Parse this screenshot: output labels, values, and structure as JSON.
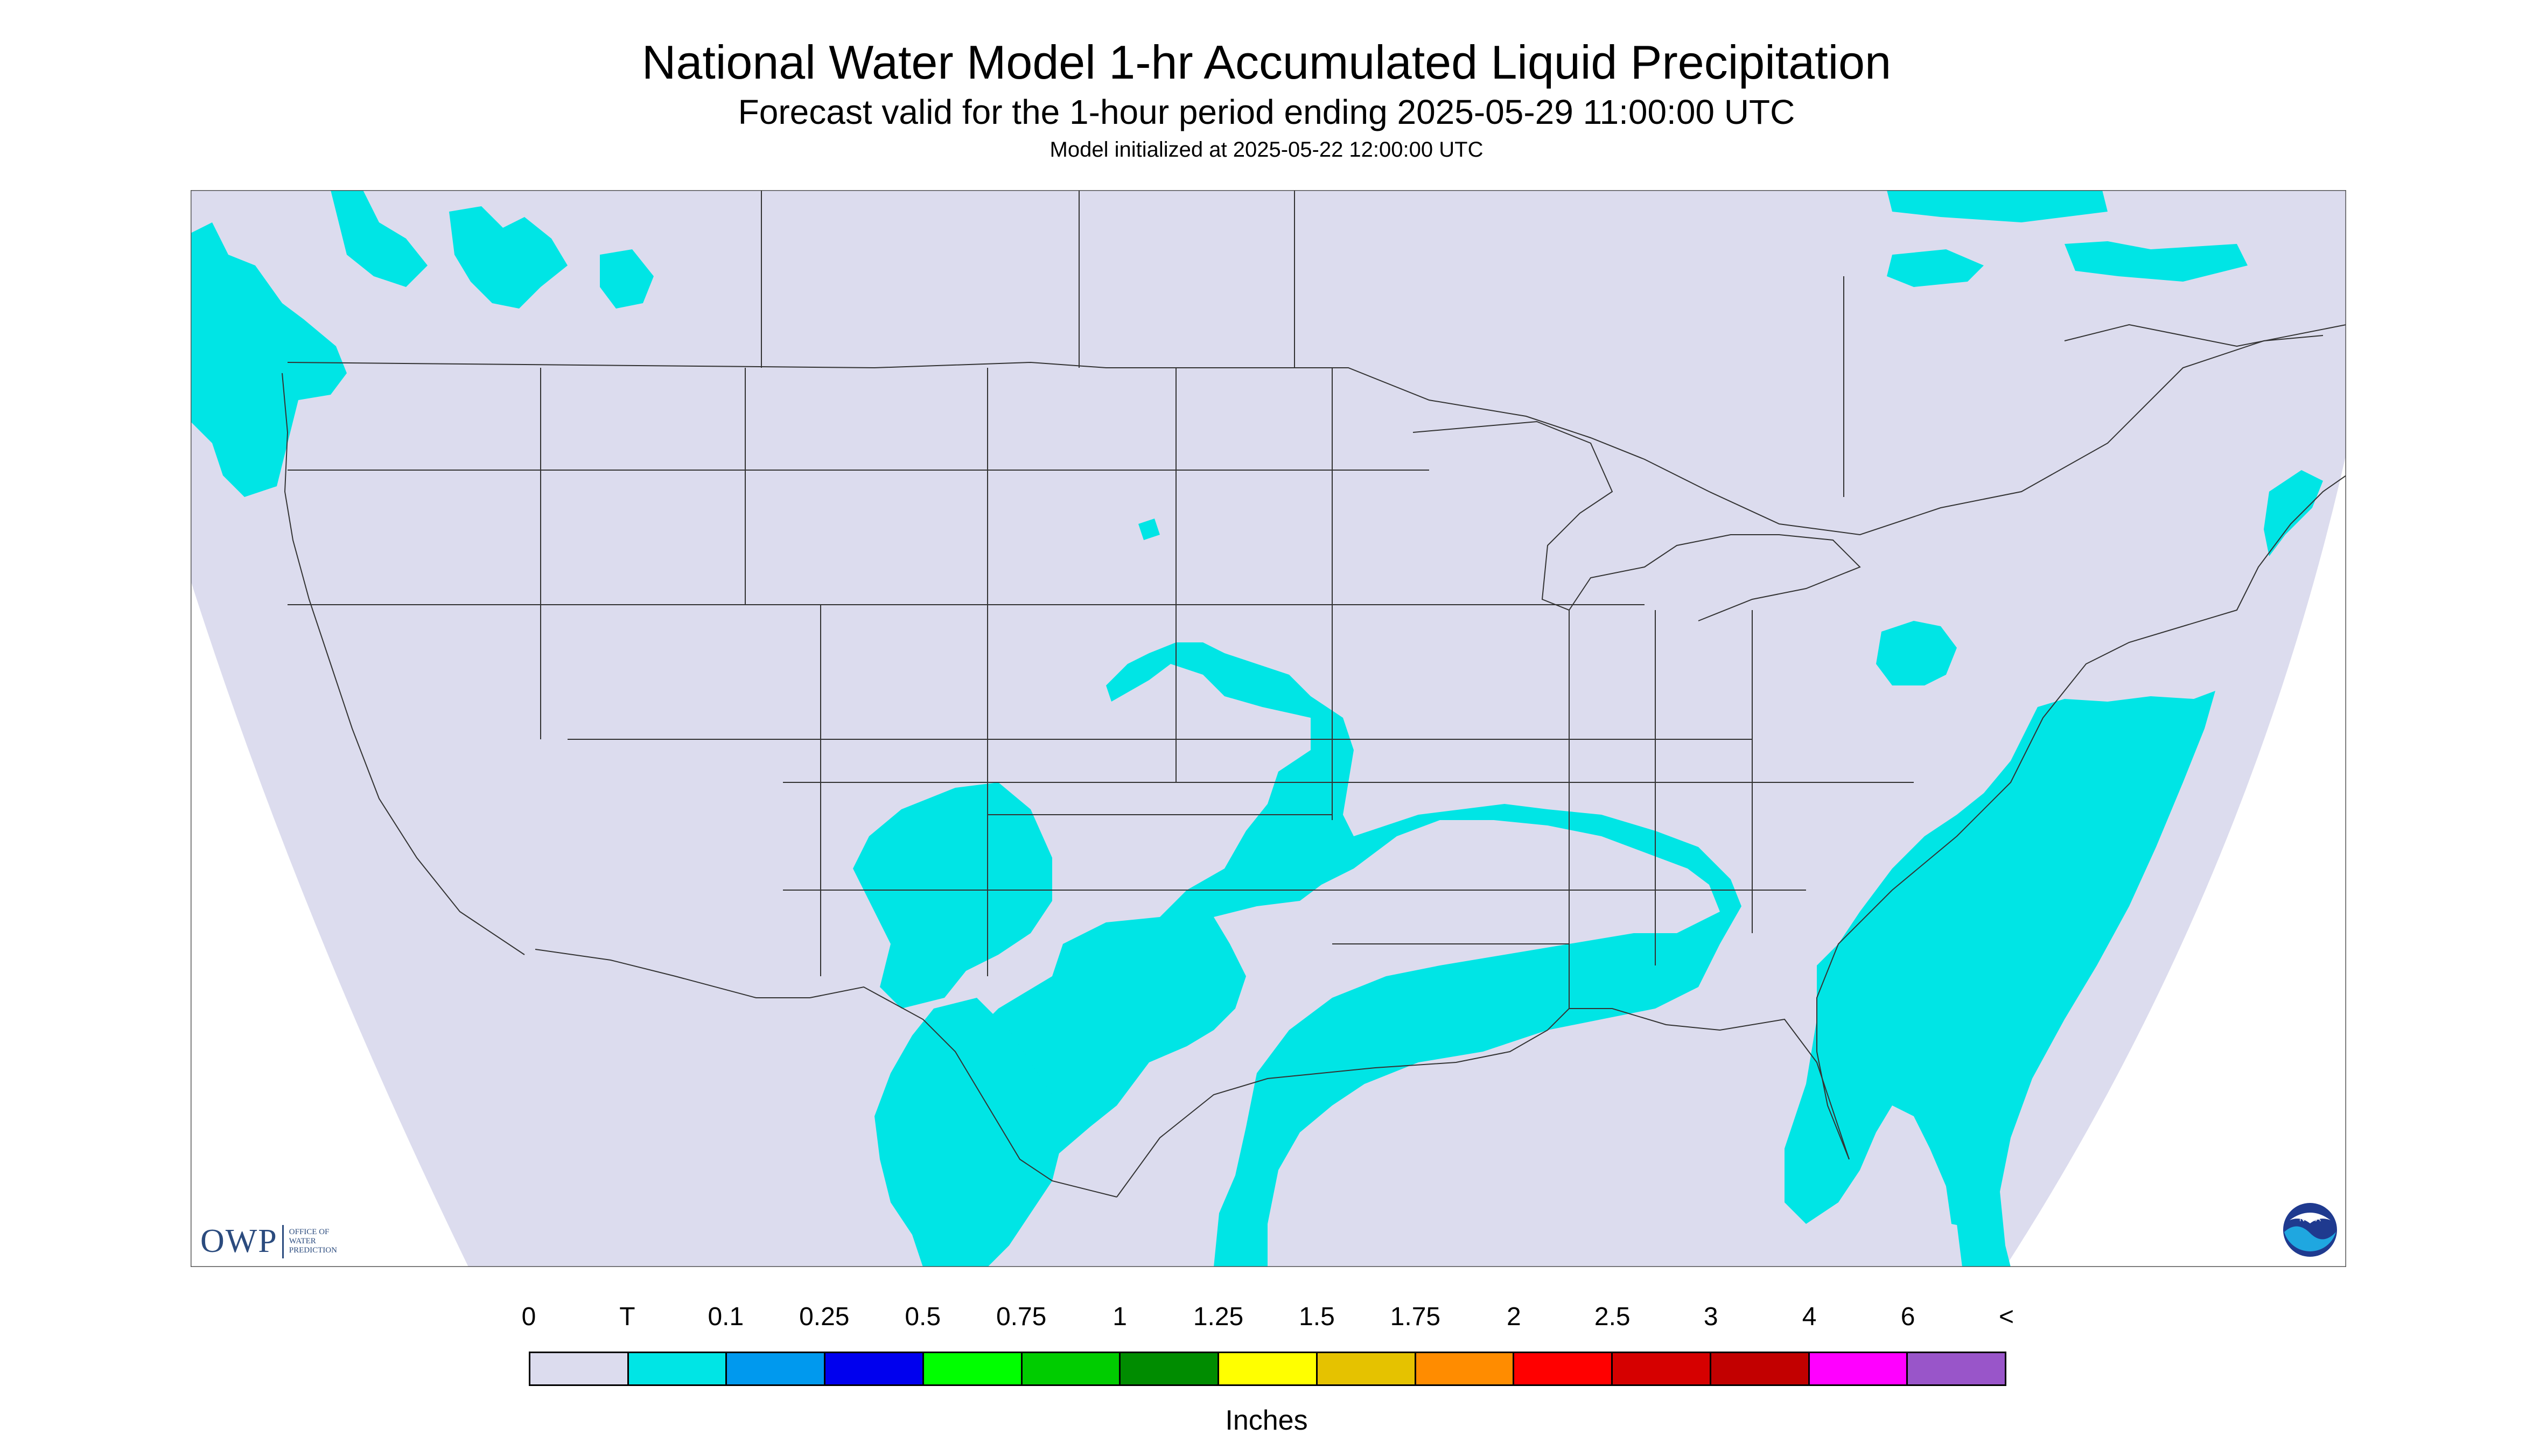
{
  "title": "National Water Model 1-hr Accumulated Liquid Precipitation",
  "subtitle": "Forecast valid for the 1-hour period ending 2025-05-29 11:00:00 UTC",
  "init_line": "Model initialized at 2025-05-22 12:00:00 UTC",
  "legend": {
    "tick_labels": [
      "0",
      "T",
      "0.1",
      "0.25",
      "0.5",
      "0.75",
      "1",
      "1.25",
      "1.5",
      "1.75",
      "2",
      "2.5",
      "3",
      "4",
      "6",
      "<"
    ],
    "colors": [
      "#dcdcee",
      "#00e5e5",
      "#0099ee",
      "#0000ee",
      "#00ff00",
      "#00cc00",
      "#008c00",
      "#ffff00",
      "#e5c200",
      "#ff8c00",
      "#ff0000",
      "#d60000",
      "#c20000",
      "#ff00ff",
      "#9955c9"
    ],
    "units": "Inches"
  },
  "logos": {
    "owp_text": "OWP",
    "owp_subtext": [
      "OFFICE OF",
      "WATER",
      "PREDICTION"
    ],
    "noaa_text": "NOAA"
  },
  "map": {
    "background_color": "#dcdcee",
    "precip_color": "#00e5e5",
    "region": "Continental United States"
  }
}
